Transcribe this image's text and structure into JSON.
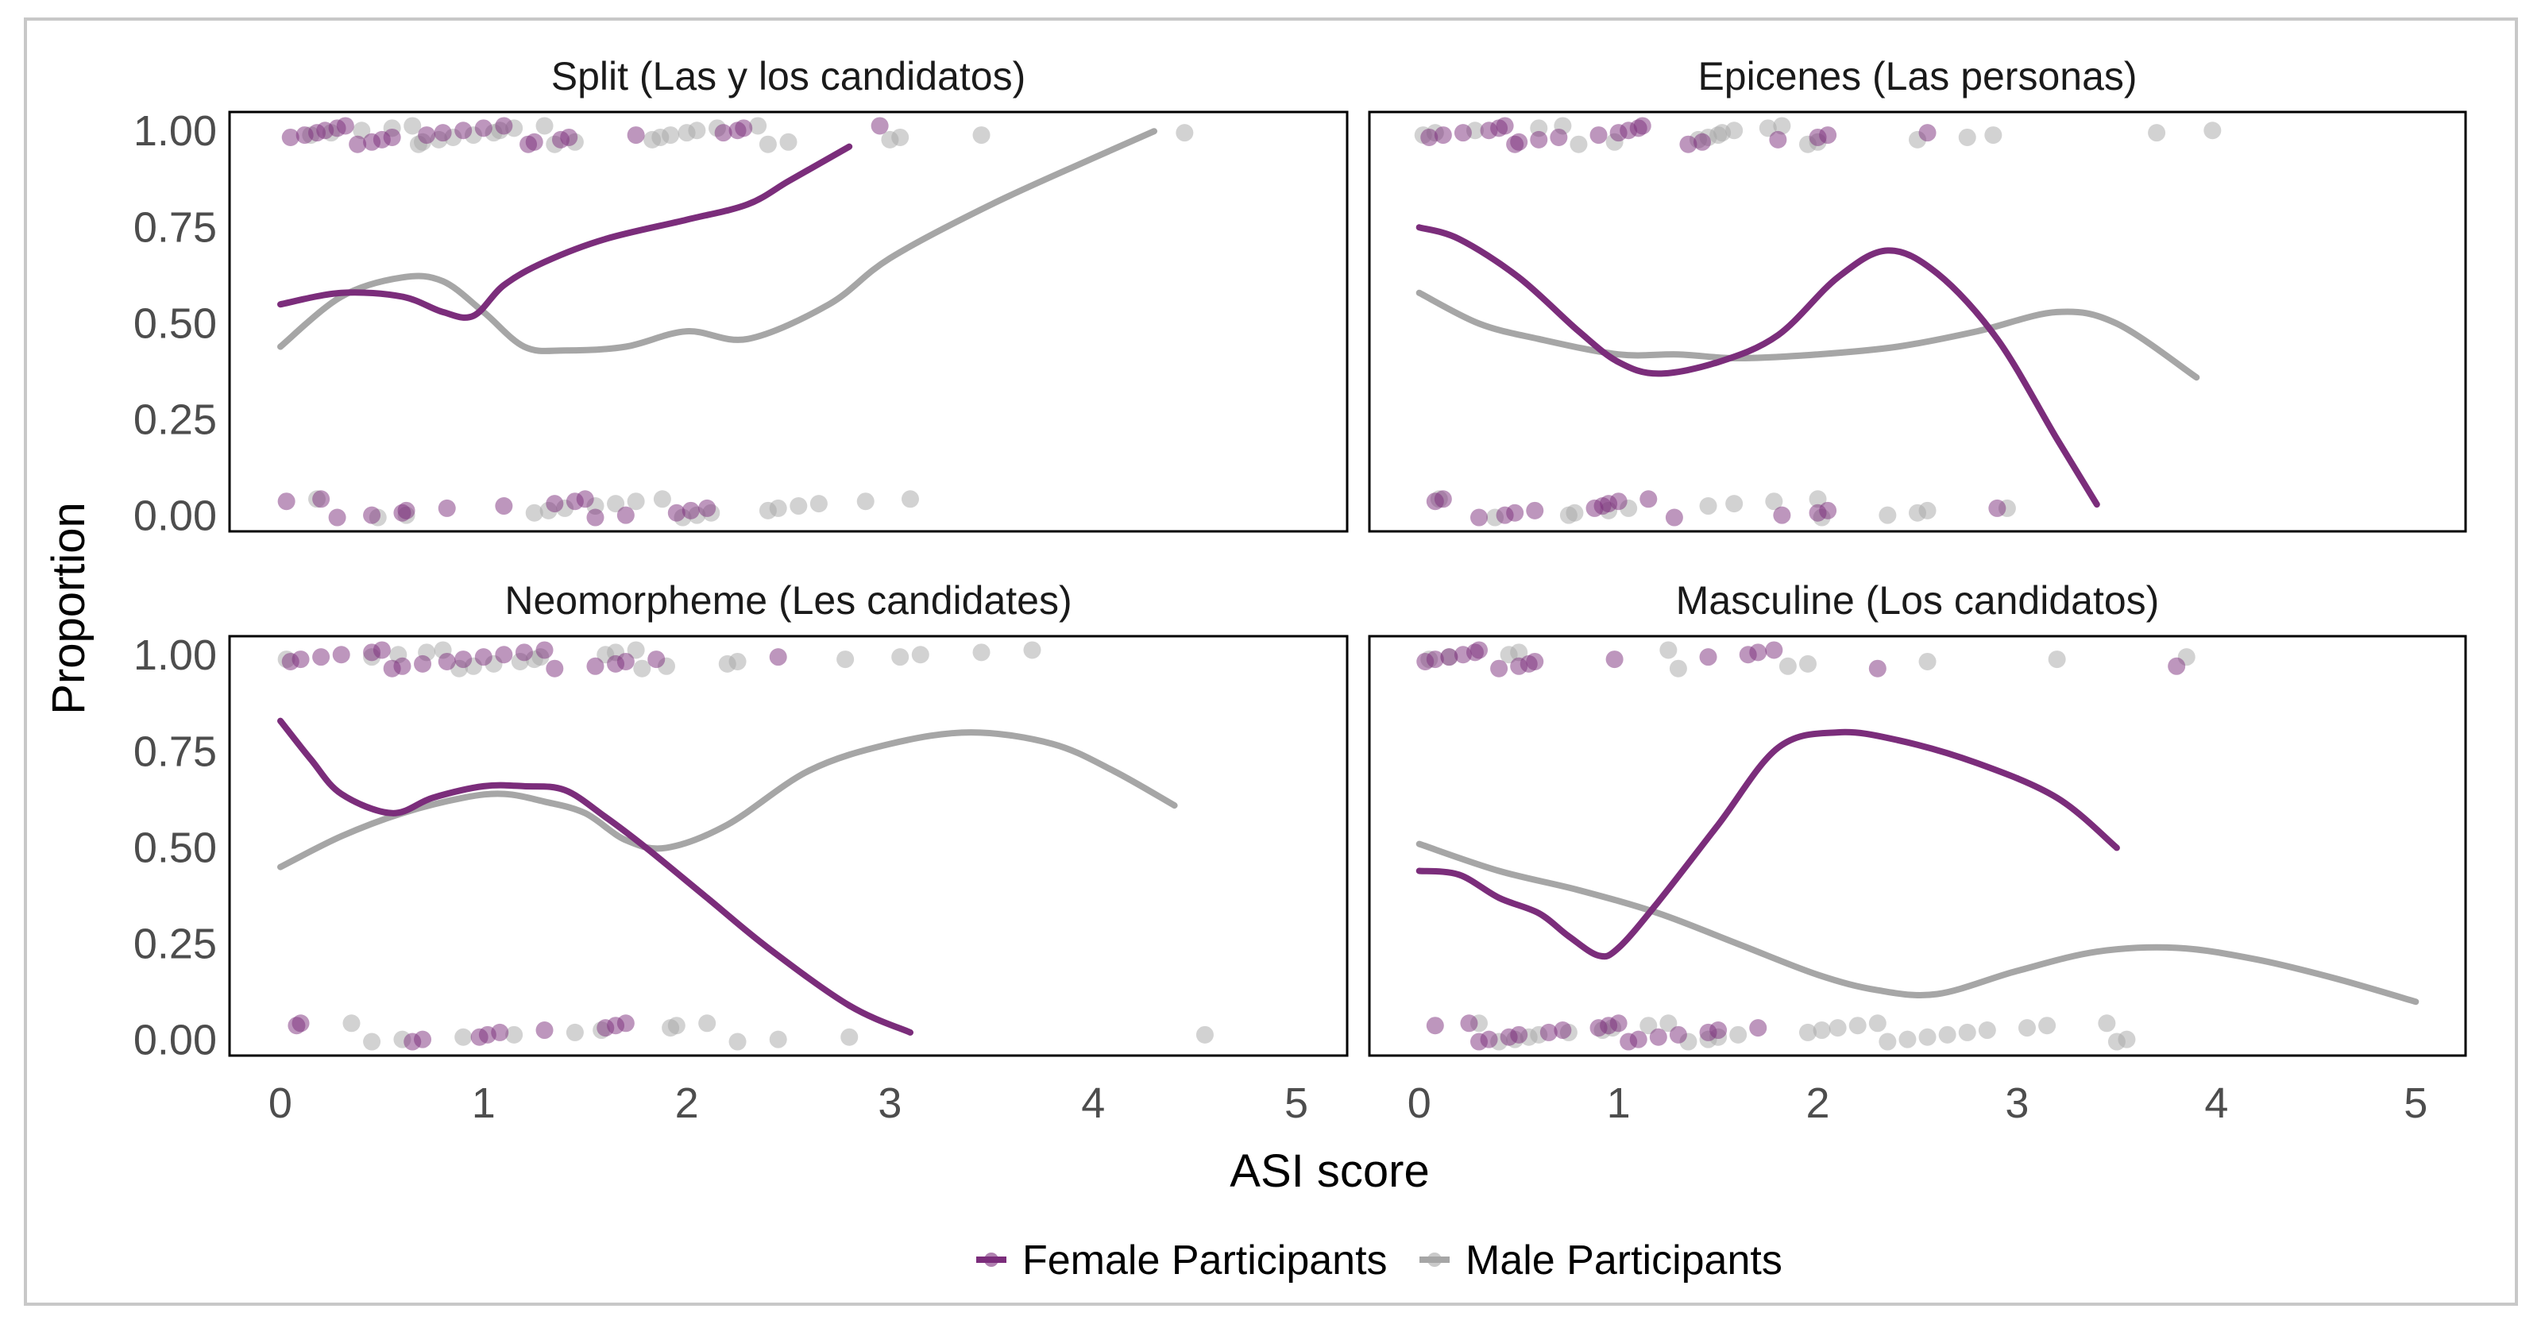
{
  "chart_data": {
    "type": "scatter",
    "ylabel": "Proportion",
    "xlabel": "ASI score",
    "xlim": [
      -0.25,
      5.25
    ],
    "ylim": [
      -0.04,
      1.05
    ],
    "x_ticks": [
      0,
      1,
      2,
      3,
      4,
      5
    ],
    "x_tick_labels": [
      "0",
      "1",
      "2",
      "3",
      "4",
      "5"
    ],
    "y_ticks": [
      0,
      0.25,
      0.5,
      0.75,
      1
    ],
    "y_tick_labels": [
      "0.00",
      "0.25",
      "0.50",
      "0.75",
      "1.00"
    ],
    "legend": {
      "placement": "bottom",
      "entries": [
        {
          "label": "Female Participants",
          "color": "#7b2d7b"
        },
        {
          "label": "Male Participants",
          "color": "#a6a6a6"
        }
      ]
    },
    "colors": {
      "female": "#7b2d7b",
      "male": "#a6a6a6"
    },
    "panels": [
      {
        "title": "Split (Las y los candidatos)",
        "female_curve": {
          "x": [
            0,
            0.3,
            0.6,
            0.8,
            0.95,
            1.1,
            1.3,
            1.6,
            2.0,
            2.3,
            2.5,
            2.7,
            2.8
          ],
          "y": [
            0.55,
            0.58,
            0.57,
            0.53,
            0.52,
            0.6,
            0.66,
            0.72,
            0.77,
            0.81,
            0.87,
            0.93,
            0.96
          ]
        },
        "male_curve": {
          "x": [
            0,
            0.3,
            0.6,
            0.8,
            1.0,
            1.2,
            1.4,
            1.7,
            2.0,
            2.3,
            2.7,
            3.0,
            3.5,
            4.0,
            4.3
          ],
          "y": [
            0.44,
            0.57,
            0.62,
            0.61,
            0.53,
            0.44,
            0.43,
            0.44,
            0.48,
            0.46,
            0.55,
            0.67,
            0.81,
            0.93,
            1.0
          ]
        },
        "female_points": {
          "top": [
            0.05,
            0.12,
            0.18,
            0.22,
            0.28,
            0.32,
            0.38,
            0.45,
            0.5,
            0.55,
            0.72,
            0.8,
            0.9,
            1.0,
            1.1,
            1.22,
            1.25,
            1.38,
            1.42,
            1.75,
            2.18,
            2.25,
            2.28,
            2.95
          ],
          "bottom": [
            0.03,
            0.2,
            0.28,
            0.45,
            0.6,
            0.62,
            0.82,
            1.1,
            1.35,
            1.45,
            1.5,
            1.55,
            1.7,
            1.95,
            2.02,
            2.1
          ]
        },
        "male_points": {
          "top": [
            0.15,
            0.25,
            0.4,
            0.55,
            0.65,
            0.68,
            0.7,
            0.78,
            0.85,
            0.95,
            1.05,
            1.08,
            1.15,
            1.3,
            1.35,
            1.45,
            1.83,
            1.87,
            1.92,
            2.0,
            2.05,
            2.15,
            2.35,
            2.4,
            2.5,
            3.0,
            3.05,
            3.45,
            4.45
          ],
          "bottom": [
            0.18,
            0.48,
            0.62,
            1.25,
            1.32,
            1.4,
            1.55,
            1.65,
            1.75,
            1.88,
            1.98,
            2.05,
            2.12,
            2.4,
            2.45,
            2.55,
            2.65,
            2.88,
            3.1
          ]
        }
      },
      {
        "title": "Epicenes (Las personas)",
        "female_curve": {
          "x": [
            0,
            0.2,
            0.5,
            0.8,
            1.0,
            1.2,
            1.5,
            1.8,
            2.1,
            2.35,
            2.6,
            2.9,
            3.2,
            3.4
          ],
          "y": [
            0.75,
            0.72,
            0.62,
            0.48,
            0.4,
            0.37,
            0.4,
            0.47,
            0.62,
            0.69,
            0.63,
            0.46,
            0.2,
            0.03
          ]
        },
        "male_curve": {
          "x": [
            0,
            0.3,
            0.6,
            1.0,
            1.3,
            1.6,
            2.0,
            2.4,
            2.8,
            3.2,
            3.5,
            3.9
          ],
          "y": [
            0.58,
            0.5,
            0.46,
            0.42,
            0.42,
            0.41,
            0.42,
            0.44,
            0.48,
            0.53,
            0.5,
            0.36
          ]
        },
        "female_points": {
          "top": [
            0.05,
            0.12,
            0.22,
            0.35,
            0.4,
            0.43,
            0.48,
            0.5,
            0.6,
            0.7,
            0.9,
            1.0,
            1.05,
            1.1,
            1.12,
            1.35,
            1.42,
            1.8,
            2.0,
            2.05,
            2.55
          ],
          "bottom": [
            0.08,
            0.12,
            0.3,
            0.43,
            0.48,
            0.58,
            0.88,
            0.92,
            0.95,
            1.0,
            1.15,
            1.28,
            1.82,
            2.0,
            2.05,
            2.9
          ]
        },
        "male_points": {
          "top": [
            0.02,
            0.08,
            0.28,
            0.6,
            0.72,
            0.8,
            0.98,
            1.4,
            1.45,
            1.5,
            1.52,
            1.58,
            1.75,
            1.82,
            1.95,
            2.0,
            2.5,
            2.75,
            2.88,
            3.7,
            3.98
          ],
          "bottom": [
            0.1,
            0.38,
            0.75,
            0.78,
            0.95,
            1.05,
            1.45,
            1.58,
            1.78,
            2.0,
            2.02,
            2.35,
            2.5,
            2.55,
            2.95
          ]
        }
      },
      {
        "title": "Neomorpheme (Les candidates)",
        "female_curve": {
          "x": [
            0,
            0.15,
            0.3,
            0.55,
            0.75,
            1.0,
            1.2,
            1.4,
            1.6,
            1.8,
            2.1,
            2.4,
            2.8,
            3.1
          ],
          "y": [
            0.83,
            0.73,
            0.64,
            0.59,
            0.63,
            0.66,
            0.66,
            0.65,
            0.58,
            0.5,
            0.37,
            0.24,
            0.09,
            0.02
          ]
        },
        "male_curve": {
          "x": [
            0,
            0.3,
            0.6,
            0.9,
            1.1,
            1.3,
            1.5,
            1.7,
            1.9,
            2.2,
            2.6,
            3.0,
            3.4,
            3.8,
            4.1,
            4.4
          ],
          "y": [
            0.45,
            0.53,
            0.59,
            0.63,
            0.64,
            0.62,
            0.59,
            0.52,
            0.5,
            0.56,
            0.7,
            0.77,
            0.8,
            0.77,
            0.7,
            0.61
          ]
        },
        "female_points": {
          "top": [
            0.05,
            0.1,
            0.2,
            0.3,
            0.45,
            0.5,
            0.55,
            0.6,
            0.7,
            0.82,
            0.9,
            1.0,
            1.1,
            1.2,
            1.3,
            1.35,
            1.55,
            1.65,
            1.7,
            1.85,
            2.45
          ],
          "bottom": [
            0.08,
            0.1,
            0.65,
            0.7,
            0.98,
            1.02,
            1.08,
            1.3,
            1.6,
            1.65,
            1.7
          ]
        },
        "male_points": {
          "top": [
            0.03,
            0.45,
            0.58,
            0.72,
            0.8,
            0.88,
            0.95,
            1.05,
            1.18,
            1.25,
            1.28,
            1.6,
            1.65,
            1.75,
            1.78,
            1.9,
            2.2,
            2.25,
            2.78,
            3.05,
            3.15,
            3.45,
            3.7
          ],
          "bottom": [
            0.35,
            0.45,
            0.6,
            0.9,
            1.15,
            1.45,
            1.58,
            1.92,
            1.95,
            2.1,
            2.25,
            2.45,
            2.8,
            4.55
          ]
        }
      },
      {
        "title": "Masculine (Los candidatos)",
        "female_curve": {
          "x": [
            0,
            0.2,
            0.4,
            0.6,
            0.75,
            0.9,
            1.0,
            1.2,
            1.5,
            1.8,
            2.1,
            2.4,
            2.8,
            3.2,
            3.5
          ],
          "y": [
            0.44,
            0.43,
            0.37,
            0.33,
            0.27,
            0.22,
            0.24,
            0.36,
            0.56,
            0.76,
            0.8,
            0.78,
            0.72,
            0.63,
            0.5
          ]
        },
        "male_curve": {
          "x": [
            0,
            0.4,
            0.8,
            1.2,
            1.6,
            2.0,
            2.3,
            2.6,
            3.0,
            3.4,
            3.8,
            4.2,
            4.6,
            5.0
          ],
          "y": [
            0.51,
            0.44,
            0.39,
            0.33,
            0.25,
            0.17,
            0.13,
            0.12,
            0.18,
            0.23,
            0.24,
            0.21,
            0.16,
            0.1
          ]
        },
        "female_points": {
          "top": [
            0.03,
            0.08,
            0.15,
            0.22,
            0.28,
            0.3,
            0.4,
            0.5,
            0.55,
            0.58,
            0.98,
            1.45,
            1.65,
            1.7,
            1.78,
            2.3,
            3.8
          ],
          "bottom": [
            0.08,
            0.25,
            0.3,
            0.35,
            0.45,
            0.5,
            0.65,
            0.72,
            0.9,
            0.95,
            1.0,
            1.05,
            1.1,
            1.2,
            1.3,
            1.45,
            1.5,
            1.7
          ]
        },
        "male_points": {
          "top": [
            0.05,
            0.15,
            0.45,
            0.5,
            1.25,
            1.3,
            1.85,
            1.95,
            2.55,
            3.2,
            3.85
          ],
          "bottom": [
            0.3,
            0.4,
            0.48,
            0.55,
            0.6,
            0.75,
            0.92,
            0.97,
            1.15,
            1.25,
            1.35,
            1.45,
            1.5,
            1.6,
            1.95,
            2.02,
            2.1,
            2.2,
            2.3,
            2.35,
            2.45,
            2.55,
            2.65,
            2.75,
            2.85,
            3.05,
            3.15,
            3.45,
            3.5,
            3.55
          ]
        }
      }
    ]
  }
}
